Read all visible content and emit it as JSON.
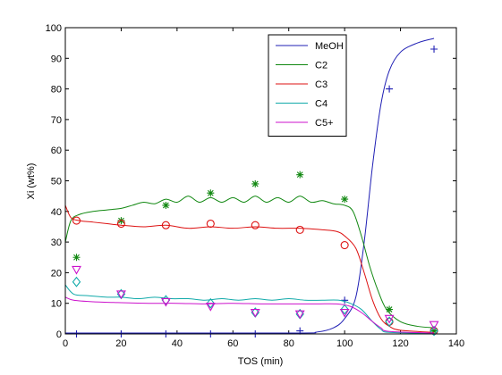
{
  "chart_data": {
    "type": "line",
    "xlabel": "TOS (min)",
    "ylabel": "Xi (wt%)",
    "xlim": [
      0,
      140
    ],
    "ylim": [
      0,
      100
    ],
    "xticks": [
      0,
      20,
      40,
      60,
      80,
      100,
      120,
      140
    ],
    "yticks": [
      0,
      10,
      20,
      30,
      40,
      50,
      60,
      70,
      80,
      90,
      100
    ],
    "grid": false,
    "legend_position": "top-right",
    "series": [
      {
        "name": "MeOH",
        "color": "#1f1fb4",
        "marker": "plus",
        "points": [
          [
            4,
            0
          ],
          [
            20,
            0
          ],
          [
            36,
            0
          ],
          [
            52,
            0
          ],
          [
            68,
            0
          ],
          [
            84,
            1
          ],
          [
            100,
            11
          ],
          [
            116,
            80
          ],
          [
            132,
            93
          ]
        ],
        "fit": [
          [
            0,
            0.3
          ],
          [
            80,
            0.3
          ],
          [
            90,
            0.6
          ],
          [
            96,
            2
          ],
          [
            100,
            5
          ],
          [
            104,
            12
          ],
          [
            107,
            30
          ],
          [
            110,
            55
          ],
          [
            113,
            75
          ],
          [
            116,
            86
          ],
          [
            120,
            92
          ],
          [
            126,
            95
          ],
          [
            132,
            96.5
          ]
        ]
      },
      {
        "name": "C2",
        "color": "#118811",
        "marker": "asterisk",
        "points": [
          [
            4,
            25
          ],
          [
            20,
            37
          ],
          [
            36,
            42
          ],
          [
            52,
            46
          ],
          [
            68,
            49
          ],
          [
            84,
            52
          ],
          [
            100,
            44
          ],
          [
            116,
            8
          ],
          [
            132,
            1
          ]
        ],
        "fit": [
          [
            0,
            30
          ],
          [
            2,
            37
          ],
          [
            5,
            39
          ],
          [
            10,
            40
          ],
          [
            15,
            40.5
          ],
          [
            20,
            41
          ],
          [
            24,
            42
          ],
          [
            28,
            43
          ],
          [
            32,
            42.5
          ],
          [
            36,
            44
          ],
          [
            40,
            43
          ],
          [
            44,
            45
          ],
          [
            48,
            43
          ],
          [
            52,
            44.5
          ],
          [
            56,
            43
          ],
          [
            60,
            44.5
          ],
          [
            64,
            43
          ],
          [
            68,
            45
          ],
          [
            72,
            43
          ],
          [
            76,
            44.5
          ],
          [
            80,
            43
          ],
          [
            84,
            45
          ],
          [
            88,
            43
          ],
          [
            92,
            43.5
          ],
          [
            96,
            42.5
          ],
          [
            100,
            42
          ],
          [
            103,
            40
          ],
          [
            106,
            32
          ],
          [
            109,
            22
          ],
          [
            112,
            14
          ],
          [
            115,
            8
          ],
          [
            120,
            4
          ],
          [
            126,
            2.5
          ],
          [
            132,
            2
          ]
        ]
      },
      {
        "name": "C3",
        "color": "#dd1111",
        "marker": "circle",
        "points": [
          [
            4,
            37
          ],
          [
            20,
            36
          ],
          [
            36,
            35.5
          ],
          [
            52,
            36
          ],
          [
            68,
            35.5
          ],
          [
            84,
            34
          ],
          [
            100,
            29
          ],
          [
            116,
            4
          ],
          [
            132,
            1
          ]
        ],
        "fit": [
          [
            0,
            42
          ],
          [
            2,
            38
          ],
          [
            5,
            37
          ],
          [
            10,
            36.5
          ],
          [
            15,
            36
          ],
          [
            20,
            35.5
          ],
          [
            28,
            35
          ],
          [
            36,
            35.5
          ],
          [
            44,
            34.5
          ],
          [
            52,
            35
          ],
          [
            60,
            34.5
          ],
          [
            68,
            35
          ],
          [
            76,
            34.5
          ],
          [
            84,
            34.5
          ],
          [
            92,
            34
          ],
          [
            97,
            33.5
          ],
          [
            100,
            32
          ],
          [
            104,
            28
          ],
          [
            107,
            20
          ],
          [
            110,
            11
          ],
          [
            113,
            5
          ],
          [
            116,
            2.5
          ],
          [
            120,
            1.2
          ],
          [
            132,
            0.5
          ]
        ]
      },
      {
        "name": "C4",
        "color": "#11aaaa",
        "marker": "diamond",
        "points": [
          [
            4,
            17
          ],
          [
            20,
            13
          ],
          [
            36,
            11
          ],
          [
            52,
            10
          ],
          [
            68,
            7
          ],
          [
            84,
            6.5
          ],
          [
            100,
            8
          ],
          [
            116,
            4
          ],
          [
            132,
            1
          ]
        ],
        "fit": [
          [
            0,
            16
          ],
          [
            3,
            13
          ],
          [
            8,
            12.5
          ],
          [
            15,
            12
          ],
          [
            20,
            12
          ],
          [
            26,
            11.5
          ],
          [
            32,
            12
          ],
          [
            38,
            11.5
          ],
          [
            44,
            11.5
          ],
          [
            50,
            11
          ],
          [
            56,
            11.5
          ],
          [
            62,
            11
          ],
          [
            68,
            11.5
          ],
          [
            74,
            11
          ],
          [
            80,
            11.5
          ],
          [
            86,
            11
          ],
          [
            92,
            11
          ],
          [
            98,
            11
          ],
          [
            102,
            10
          ],
          [
            106,
            8
          ],
          [
            110,
            4
          ],
          [
            113,
            1.5
          ],
          [
            116,
            0.5
          ],
          [
            132,
            0.2
          ]
        ]
      },
      {
        "name": "C5+",
        "color": "#cc11cc",
        "marker": "triangle-down",
        "points": [
          [
            4,
            21
          ],
          [
            20,
            13
          ],
          [
            36,
            10.5
          ],
          [
            52,
            9
          ],
          [
            68,
            7
          ],
          [
            84,
            6.5
          ],
          [
            100,
            7
          ],
          [
            116,
            5
          ],
          [
            132,
            3
          ]
        ],
        "fit": [
          [
            0,
            12
          ],
          [
            3,
            11
          ],
          [
            10,
            10.5
          ],
          [
            20,
            10.2
          ],
          [
            30,
            10
          ],
          [
            40,
            10
          ],
          [
            50,
            9.8
          ],
          [
            60,
            10
          ],
          [
            70,
            9.8
          ],
          [
            80,
            9.8
          ],
          [
            90,
            9.8
          ],
          [
            97,
            9.8
          ],
          [
            102,
            9
          ],
          [
            106,
            7
          ],
          [
            110,
            4
          ],
          [
            113,
            2
          ],
          [
            116,
            0.8
          ],
          [
            132,
            0.3
          ]
        ]
      }
    ]
  }
}
